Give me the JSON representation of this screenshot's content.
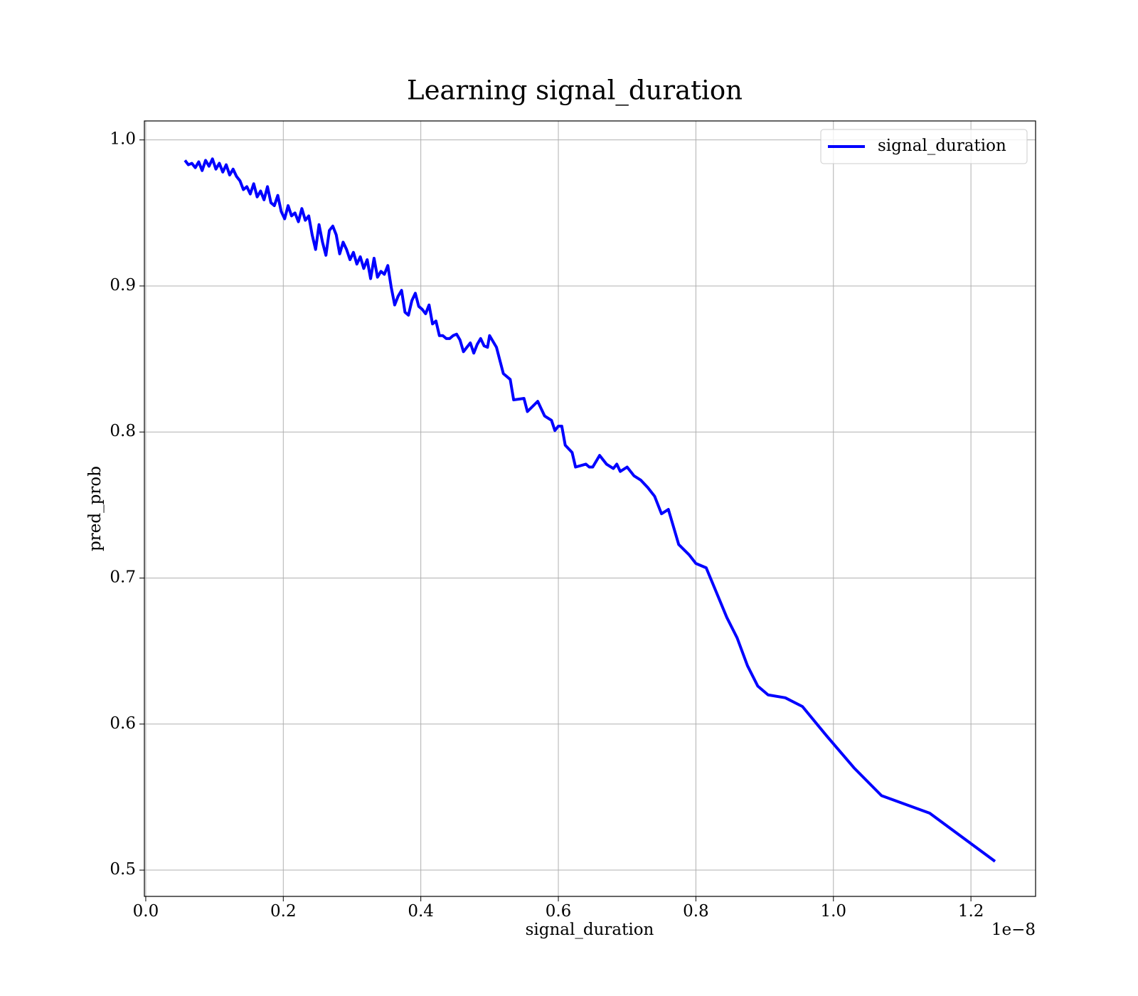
{
  "chart_data": {
    "type": "line",
    "title": "Learning signal_duration",
    "x_label": "signal_duration",
    "y_label": "pred_prob",
    "x_offset_label": "1e−8",
    "x": [
      0.057,
      0.062,
      0.067,
      0.072,
      0.077,
      0.082,
      0.087,
      0.092,
      0.097,
      0.102,
      0.107,
      0.112,
      0.117,
      0.122,
      0.127,
      0.132,
      0.137,
      0.142,
      0.147,
      0.152,
      0.157,
      0.162,
      0.167,
      0.172,
      0.177,
      0.182,
      0.187,
      0.192,
      0.197,
      0.202,
      0.207,
      0.212,
      0.217,
      0.222,
      0.227,
      0.232,
      0.237,
      0.242,
      0.247,
      0.252,
      0.257,
      0.262,
      0.267,
      0.272,
      0.277,
      0.282,
      0.287,
      0.292,
      0.297,
      0.302,
      0.307,
      0.312,
      0.317,
      0.322,
      0.327,
      0.332,
      0.337,
      0.342,
      0.347,
      0.352,
      0.357,
      0.362,
      0.367,
      0.372,
      0.377,
      0.382,
      0.387,
      0.392,
      0.397,
      0.402,
      0.407,
      0.412,
      0.417,
      0.422,
      0.427,
      0.432,
      0.437,
      0.442,
      0.447,
      0.452,
      0.457,
      0.462,
      0.467,
      0.472,
      0.477,
      0.482,
      0.487,
      0.492,
      0.497,
      0.5,
      0.51,
      0.52,
      0.53,
      0.535,
      0.55,
      0.555,
      0.57,
      0.58,
      0.59,
      0.595,
      0.6,
      0.605,
      0.61,
      0.62,
      0.625,
      0.64,
      0.645,
      0.65,
      0.66,
      0.67,
      0.68,
      0.685,
      0.69,
      0.7,
      0.71,
      0.72,
      0.73,
      0.74,
      0.75,
      0.76,
      0.775,
      0.79,
      0.8,
      0.815,
      0.83,
      0.845,
      0.86,
      0.875,
      0.89,
      0.905,
      0.93,
      0.955,
      0.99,
      1.03,
      1.07,
      1.14,
      1.235
    ],
    "series": [
      {
        "name": "signal_duration",
        "color": "#0000ff",
        "values": [
          0.986,
          0.983,
          0.984,
          0.981,
          0.985,
          0.979,
          0.986,
          0.982,
          0.987,
          0.98,
          0.984,
          0.978,
          0.983,
          0.976,
          0.98,
          0.975,
          0.972,
          0.966,
          0.968,
          0.963,
          0.97,
          0.961,
          0.965,
          0.959,
          0.968,
          0.957,
          0.955,
          0.962,
          0.951,
          0.946,
          0.955,
          0.948,
          0.95,
          0.944,
          0.953,
          0.945,
          0.948,
          0.935,
          0.925,
          0.942,
          0.93,
          0.921,
          0.938,
          0.941,
          0.935,
          0.922,
          0.93,
          0.925,
          0.918,
          0.923,
          0.915,
          0.92,
          0.912,
          0.918,
          0.905,
          0.919,
          0.906,
          0.91,
          0.908,
          0.914,
          0.899,
          0.887,
          0.893,
          0.897,
          0.882,
          0.88,
          0.89,
          0.895,
          0.886,
          0.884,
          0.881,
          0.887,
          0.874,
          0.876,
          0.866,
          0.866,
          0.864,
          0.864,
          0.866,
          0.867,
          0.863,
          0.855,
          0.858,
          0.861,
          0.854,
          0.86,
          0.864,
          0.859,
          0.858,
          0.866,
          0.858,
          0.84,
          0.836,
          0.822,
          0.823,
          0.814,
          0.821,
          0.811,
          0.808,
          0.801,
          0.804,
          0.804,
          0.791,
          0.786,
          0.776,
          0.778,
          0.776,
          0.776,
          0.784,
          0.778,
          0.775,
          0.778,
          0.773,
          0.776,
          0.77,
          0.767,
          0.762,
          0.756,
          0.744,
          0.747,
          0.723,
          0.716,
          0.71,
          0.707,
          0.69,
          0.673,
          0.659,
          0.64,
          0.626,
          0.62,
          0.618,
          0.612,
          0.592,
          0.57,
          0.551,
          0.539,
          0.506
        ]
      }
    ],
    "xlim": [
      -0.002,
      1.294
    ],
    "ylim": [
      0.482,
      1.013
    ],
    "xticks": [
      {
        "value": 0,
        "label": "0.0"
      },
      0.2,
      0.4,
      0.6,
      0.8,
      {
        "value": 1,
        "label": "1.0"
      },
      1.2
    ],
    "yticks": [
      0.5,
      0.6,
      0.7,
      0.8,
      0.9,
      {
        "value": 1,
        "label": "1.0"
      }
    ],
    "grid": true,
    "legend": "upper right"
  }
}
